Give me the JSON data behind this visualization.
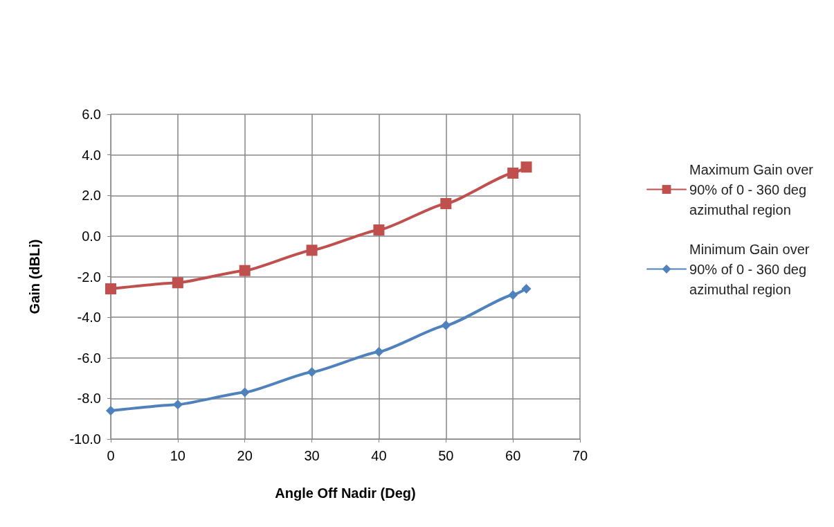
{
  "chart_data": {
    "type": "line",
    "xlabel": "Angle Off Nadir (Deg)",
    "ylabel": "Gain (dBLi)",
    "x": [
      0,
      10,
      20,
      30,
      40,
      50,
      60,
      62
    ],
    "series": [
      {
        "name": "Maximum Gain over 90% of 0 - 360 deg azimuthal region",
        "color": "#c0504d",
        "marker": "square",
        "values": [
          -2.6,
          -2.3,
          -1.7,
          -0.7,
          0.3,
          1.6,
          3.1,
          3.4
        ]
      },
      {
        "name": "Minimum Gain over 90% of 0 - 360 deg azimuthal region",
        "color": "#4f81bd",
        "marker": "diamond",
        "values": [
          -8.6,
          -8.3,
          -7.7,
          -6.7,
          -5.7,
          -4.4,
          -2.9,
          -2.6
        ]
      }
    ],
    "xlim": [
      0,
      70
    ],
    "xticks": [
      0,
      10,
      20,
      30,
      40,
      50,
      60,
      70
    ],
    "ylim": [
      -10,
      6
    ],
    "yticks": [
      {
        "value": -10,
        "label": "-10.0"
      },
      {
        "value": -8,
        "label": "-8.0"
      },
      {
        "value": -6,
        "label": "-6.0"
      },
      {
        "value": -4,
        "label": "-4.0"
      },
      {
        "value": -2,
        "label": "-2.0"
      },
      {
        "value": 0,
        "label": "0.0"
      },
      {
        "value": 2,
        "label": "2.0"
      },
      {
        "value": 4,
        "label": "4.0"
      },
      {
        "value": 6,
        "label": "6.0"
      }
    ],
    "grid": true,
    "legend": "right",
    "line_style": "solid"
  }
}
